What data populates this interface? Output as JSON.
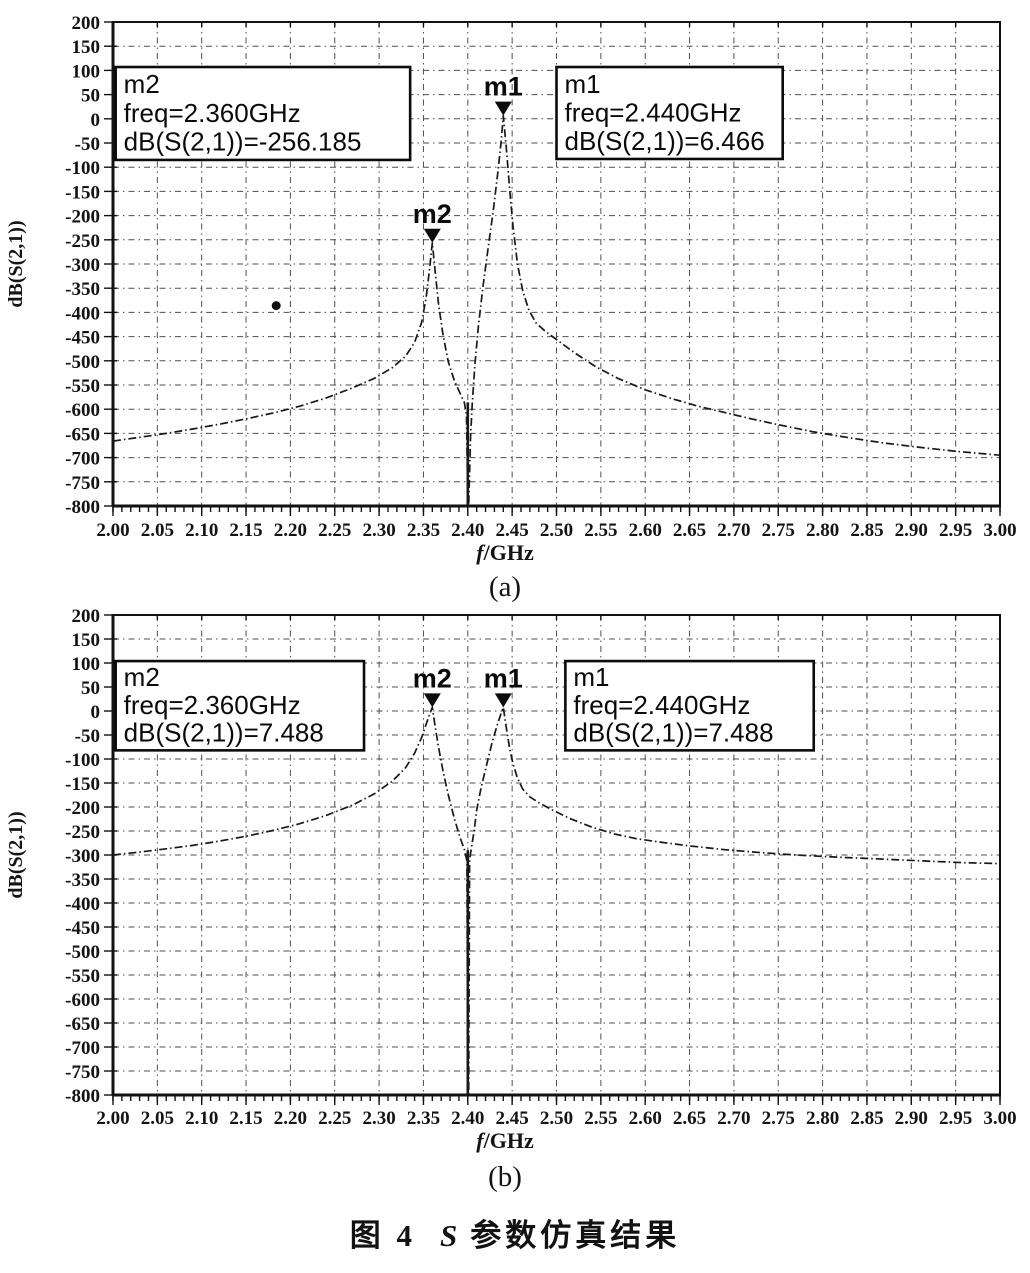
{
  "caption": {
    "fig_label": "图 4",
    "title_s": "S",
    "title_rest": "参数仿真结果"
  },
  "chart_data": [
    {
      "id": "a",
      "type": "line",
      "panel_label": "(a)",
      "xlabel_italic": "f",
      "xlabel_unit": "/GHz",
      "ylabel": "dB(S(2,1))",
      "xlim": [
        2.0,
        3.0
      ],
      "ylim": [
        -800,
        200
      ],
      "grid": "dashed",
      "x_ticks": [
        "2.00",
        "2.05",
        "2.10",
        "2.15",
        "2.20",
        "2.25",
        "2.30",
        "2.35",
        "2.40",
        "2.45",
        "2.50",
        "2.55",
        "2.60",
        "2.65",
        "2.70",
        "2.75",
        "2.80",
        "2.85",
        "2.90",
        "2.95",
        "3.00"
      ],
      "y_ticks": [
        "200",
        "150",
        "100",
        "50",
        "0",
        "-50",
        "-100",
        "-150",
        "-200",
        "-250",
        "-300",
        "-350",
        "-400",
        "-450",
        "-500",
        "-550",
        "-600",
        "-650",
        "-700",
        "-750",
        "-800"
      ],
      "markers": [
        {
          "id": "m2",
          "label": "m2",
          "freq": 2.36,
          "db": -256.185
        },
        {
          "id": "m1",
          "label": "m1",
          "freq": 2.44,
          "db": 6.466
        }
      ],
      "annotations": [
        {
          "lines": [
            "m2",
            "freq=2.360GHz",
            "dB(S(2,1))=-256.185"
          ],
          "box": {
            "x1": 2.003,
            "y_top": 107,
            "x2": 2.335,
            "y_bottom": -85
          }
        },
        {
          "lines": [
            "m1",
            "freq=2.440GHz",
            "dB(S(2,1))=6.466"
          ],
          "box": {
            "x1": 2.5,
            "y_top": 107,
            "x2": 2.755,
            "y_bottom": -83
          }
        }
      ],
      "notch": {
        "freq": 2.4,
        "db_from": -586,
        "db_to": -800
      },
      "stray_dot": {
        "freq": 2.184,
        "db": -386
      },
      "series": [
        {
          "name": "dB(S(2,1))",
          "points": [
            [
              2.0,
              -666
            ],
            [
              2.03,
              -658
            ],
            [
              2.06,
              -650
            ],
            [
              2.09,
              -641
            ],
            [
              2.12,
              -631
            ],
            [
              2.15,
              -620
            ],
            [
              2.18,
              -608
            ],
            [
              2.21,
              -594
            ],
            [
              2.24,
              -577
            ],
            [
              2.27,
              -556
            ],
            [
              2.295,
              -536
            ],
            [
              2.315,
              -514
            ],
            [
              2.33,
              -490
            ],
            [
              2.34,
              -462
            ],
            [
              2.348,
              -420
            ],
            [
              2.353,
              -370
            ],
            [
              2.357,
              -308
            ],
            [
              2.36,
              -256.185
            ],
            [
              2.363,
              -312
            ],
            [
              2.367,
              -382
            ],
            [
              2.372,
              -446
            ],
            [
              2.378,
              -502
            ],
            [
              2.385,
              -542
            ],
            [
              2.391,
              -566
            ],
            [
              2.396,
              -586
            ],
            [
              2.3985,
              -612
            ],
            [
              2.4,
              -800
            ],
            [
              2.401,
              -800
            ],
            [
              2.403,
              -660
            ],
            [
              2.405,
              -590
            ],
            [
              2.408,
              -508
            ],
            [
              2.412,
              -428
            ],
            [
              2.417,
              -348
            ],
            [
              2.423,
              -266
            ],
            [
              2.429,
              -186
            ],
            [
              2.434,
              -108
            ],
            [
              2.4375,
              -48
            ],
            [
              2.44,
              6.466
            ],
            [
              2.4435,
              -62
            ],
            [
              2.447,
              -142
            ],
            [
              2.451,
              -222
            ],
            [
              2.456,
              -300
            ],
            [
              2.462,
              -356
            ],
            [
              2.469,
              -396
            ],
            [
              2.477,
              -422
            ],
            [
              2.488,
              -440
            ],
            [
              2.5,
              -456
            ],
            [
              2.52,
              -483
            ],
            [
              2.545,
              -513
            ],
            [
              2.57,
              -537
            ],
            [
              2.6,
              -560
            ],
            [
              2.63,
              -578
            ],
            [
              2.66,
              -594
            ],
            [
              2.69,
              -607
            ],
            [
              2.72,
              -620
            ],
            [
              2.75,
              -632
            ],
            [
              2.79,
              -647
            ],
            [
              2.83,
              -659
            ],
            [
              2.87,
              -670
            ],
            [
              2.91,
              -679
            ],
            [
              2.95,
              -687
            ],
            [
              3.0,
              -695
            ]
          ]
        }
      ]
    },
    {
      "id": "b",
      "type": "line",
      "panel_label": "(b)",
      "xlabel_italic": "f",
      "xlabel_unit": "/GHz",
      "ylabel": "dB(S(2,1))",
      "xlim": [
        2.0,
        3.0
      ],
      "ylim": [
        -800,
        200
      ],
      "grid": "dashed",
      "x_ticks": [
        "2.00",
        "2.05",
        "2.10",
        "2.15",
        "2.20",
        "2.25",
        "2.30",
        "2.35",
        "2.40",
        "2.45",
        "2.50",
        "2.55",
        "2.60",
        "2.65",
        "2.70",
        "2.75",
        "2.80",
        "2.85",
        "2.90",
        "2.95",
        "3.00"
      ],
      "y_ticks": [
        "200",
        "150",
        "100",
        "50",
        "0",
        "-50",
        "-100",
        "-150",
        "-200",
        "-250",
        "-300",
        "-350",
        "-400",
        "-450",
        "-500",
        "-550",
        "-600",
        "-650",
        "-700",
        "-750",
        "-800"
      ],
      "markers": [
        {
          "id": "m2",
          "label": "m2",
          "freq": 2.36,
          "db": 7.488
        },
        {
          "id": "m1",
          "label": "m1",
          "freq": 2.44,
          "db": 7.488
        }
      ],
      "annotations": [
        {
          "lines": [
            "m2",
            "freq=2.360GHz",
            "dB(S(2,1))=7.488"
          ],
          "box": {
            "x1": 2.003,
            "y_top": 104,
            "x2": 2.283,
            "y_bottom": -82
          }
        },
        {
          "lines": [
            "m1",
            "freq=2.440GHz",
            "dB(S(2,1))=7.488"
          ],
          "box": {
            "x1": 2.51,
            "y_top": 104,
            "x2": 2.79,
            "y_bottom": -82
          }
        }
      ],
      "notch": {
        "freq": 2.4,
        "db_from": -290,
        "db_to": -800
      },
      "series": [
        {
          "name": "dB(S(2,1))",
          "points": [
            [
              2.0,
              -300
            ],
            [
              2.03,
              -294
            ],
            [
              2.06,
              -287
            ],
            [
              2.09,
              -280
            ],
            [
              2.12,
              -271
            ],
            [
              2.15,
              -261
            ],
            [
              2.18,
              -249
            ],
            [
              2.21,
              -235
            ],
            [
              2.24,
              -218
            ],
            [
              2.27,
              -196
            ],
            [
              2.295,
              -172
            ],
            [
              2.315,
              -146
            ],
            [
              2.33,
              -118
            ],
            [
              2.34,
              -88
            ],
            [
              2.348,
              -55
            ],
            [
              2.353,
              -28
            ],
            [
              2.357,
              -6
            ],
            [
              2.36,
              7.488
            ],
            [
              2.363,
              -30
            ],
            [
              2.367,
              -75
            ],
            [
              2.372,
              -125
            ],
            [
              2.378,
              -175
            ],
            [
              2.385,
              -225
            ],
            [
              2.391,
              -262
            ],
            [
              2.396,
              -288
            ],
            [
              2.399,
              -312
            ],
            [
              2.4,
              -800
            ],
            [
              2.401,
              -800
            ],
            [
              2.402,
              -310
            ],
            [
              2.404,
              -286
            ],
            [
              2.407,
              -252
            ],
            [
              2.41,
              -206
            ],
            [
              2.415,
              -160
            ],
            [
              2.421,
              -114
            ],
            [
              2.427,
              -69
            ],
            [
              2.433,
              -30
            ],
            [
              2.437,
              -8
            ],
            [
              2.44,
              7.488
            ],
            [
              2.4435,
              -36
            ],
            [
              2.447,
              -76
            ],
            [
              2.451,
              -110
            ],
            [
              2.456,
              -140
            ],
            [
              2.462,
              -163
            ],
            [
              2.47,
              -179
            ],
            [
              2.48,
              -191
            ],
            [
              2.495,
              -206
            ],
            [
              2.515,
              -224
            ],
            [
              2.54,
              -242
            ],
            [
              2.565,
              -256
            ],
            [
              2.59,
              -266
            ],
            [
              2.62,
              -274
            ],
            [
              2.65,
              -281
            ],
            [
              2.69,
              -289
            ],
            [
              2.73,
              -295
            ],
            [
              2.77,
              -300
            ],
            [
              2.81,
              -304
            ],
            [
              2.86,
              -308
            ],
            [
              2.91,
              -312
            ],
            [
              2.96,
              -316
            ],
            [
              3.0,
              -318
            ]
          ]
        }
      ]
    }
  ]
}
